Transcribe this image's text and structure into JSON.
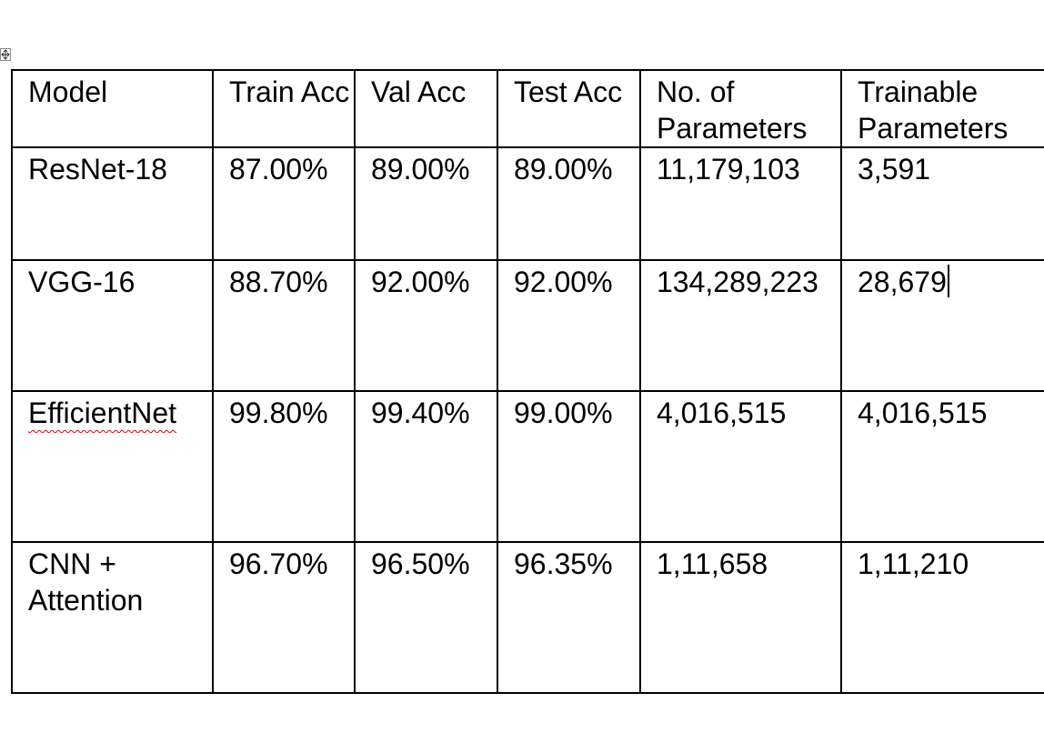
{
  "table": {
    "headers": [
      "Model",
      "Train Acc",
      "Val Acc",
      "Test Acc",
      "No. of Parameters",
      "Trainable Parameters"
    ],
    "rows": [
      [
        "ResNet-18",
        "87.00%",
        "89.00%",
        "89.00%",
        "11,179,103",
        "3,591"
      ],
      [
        "VGG-16",
        "88.70%",
        "92.00%",
        "92.00%",
        "134,289,223",
        "28,679"
      ],
      [
        "EfficientNet",
        "99.80%",
        "99.40%",
        "99.00%",
        "4,016,515",
        "4,016,515"
      ],
      [
        "CNN + Attention",
        "96.70%",
        "96.50%",
        "96.35%",
        "1,11,658",
        "1,11,210"
      ]
    ]
  },
  "icons": {
    "table_move_handle": "table-move-handle-icon",
    "spellcheck_underline": "spellcheck-underline-icon",
    "text_cursor": "text-cursor-icon"
  },
  "colors": {
    "spellcheck": "#d0021b",
    "border": "#000000"
  }
}
